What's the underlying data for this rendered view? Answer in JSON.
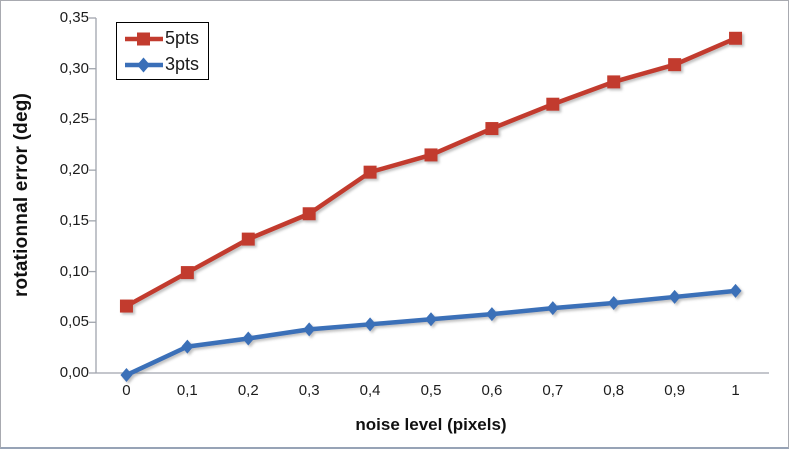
{
  "chart_data": {
    "type": "line",
    "categories": [
      "0",
      "0,1",
      "0,2",
      "0,3",
      "0,4",
      "0,5",
      "0,6",
      "0,7",
      "0,8",
      "0,9",
      "1"
    ],
    "series": [
      {
        "name": "5pts",
        "marker": "square",
        "color": "#c23b2e",
        "values": [
          0.066,
          0.099,
          0.132,
          0.157,
          0.198,
          0.215,
          0.241,
          0.265,
          0.287,
          0.304,
          0.33
        ]
      },
      {
        "name": "3pts",
        "marker": "diamond",
        "color": "#3a6fb8",
        "values": [
          -0.002,
          0.026,
          0.034,
          0.043,
          0.048,
          0.053,
          0.058,
          0.064,
          0.069,
          0.075,
          0.081
        ]
      }
    ],
    "title": "",
    "xlabel": "noise level (pixels)",
    "ylabel": "rotationnal error (deg)",
    "ylim": [
      0,
      0.35
    ],
    "y_tick_step": 0.05,
    "y_tick_labels": [
      "0,00",
      "0,05",
      "0,10",
      "0,15",
      "0,20",
      "0,25",
      "0,30",
      "0,35"
    ],
    "grid": false,
    "legend_position": "top-left-inside"
  },
  "colors": {
    "axis": "#a0a5ad",
    "tick_text": "#1c1c1c",
    "background": "#ffffff",
    "frame_border": "#a8aab0"
  }
}
